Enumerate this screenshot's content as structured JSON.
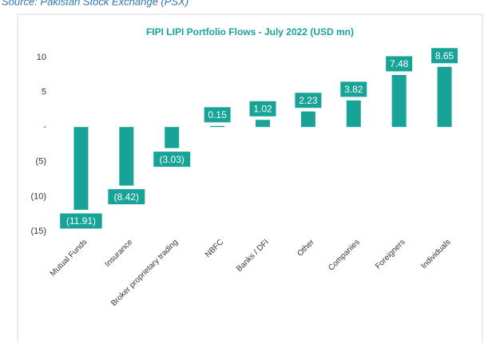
{
  "source": "Source: Pakistan Stock Exchange (PSX)",
  "chart_data": {
    "type": "bar",
    "title": "FIPI LIPI Portfolio Flows - July 2022 (USD mn)",
    "categories": [
      "Mutual Funds",
      "Insurance",
      "Broker proprietary trading",
      "NBFC",
      "Banks / DFI",
      "Other",
      "Companies",
      "Foreigners",
      "Individuals"
    ],
    "values": [
      -11.91,
      -8.42,
      -3.03,
      0.15,
      1.02,
      2.23,
      3.82,
      7.48,
      8.65
    ],
    "value_labels": [
      "(11.91)",
      "(8.42)",
      "(3.03)",
      "0.15",
      "1.02",
      "2.23",
      "3.82",
      "7.48",
      "8.65"
    ],
    "color": "#17a398",
    "ylim": [
      -15,
      10
    ],
    "yticks": [
      10,
      5,
      {
        "value": 0,
        "label": "-"
      },
      {
        "value": -5,
        "label": "(5)"
      },
      {
        "value": -10,
        "label": "(10)"
      },
      {
        "value": -15,
        "label": "(15)"
      }
    ],
    "grid": false
  }
}
